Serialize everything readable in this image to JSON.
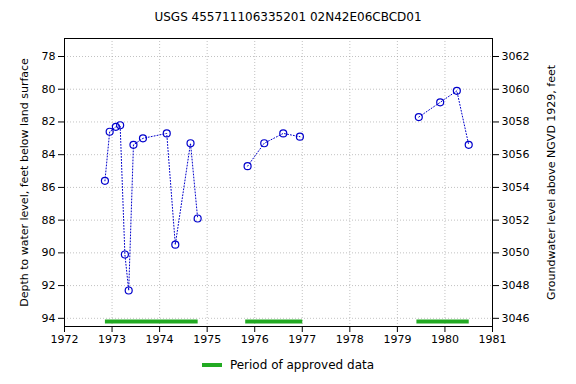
{
  "chart_data": {
    "type": "line",
    "title": "USGS 455711106335201 02N42E06CBCD01",
    "y_label": "Depth to water level, feet below land surface",
    "y2_label": "Groundwater level above NGVD 1929, feet",
    "x": [
      1972.85,
      1972.95,
      1973.08,
      1973.17,
      1973.27,
      1973.35,
      1973.45,
      1973.65,
      1974.15,
      1974.33,
      1974.65,
      1974.8,
      null,
      1975.85,
      1976.2,
      1976.6,
      1976.95,
      null,
      1979.45,
      1979.9,
      1980.25,
      1980.5
    ],
    "series": [
      {
        "color": "#0000cc",
        "marker": "circle",
        "line_style": "dotted",
        "values": [
          85.6,
          82.6,
          82.3,
          82.2,
          90.1,
          92.3,
          83.4,
          83.0,
          82.7,
          89.5,
          83.3,
          87.9,
          null,
          84.7,
          83.3,
          82.7,
          82.9,
          null,
          81.7,
          80.8,
          80.1,
          83.4
        ]
      }
    ],
    "approved_periods": {
      "name": "Period of approved data",
      "color": "#22aa22",
      "ranges": [
        [
          1972.85,
          1974.8
        ],
        [
          1975.8,
          1977.0
        ],
        [
          1979.4,
          1980.5
        ]
      ]
    },
    "xlim": [
      1972,
      1981
    ],
    "xticks": [
      1972,
      1973,
      1974,
      1975,
      1976,
      1977,
      1978,
      1979,
      1980,
      1981
    ],
    "ylim": [
      94.5,
      76.9
    ],
    "yticks": [
      78,
      80,
      82,
      84,
      86,
      88,
      90,
      92,
      94
    ],
    "y2lim": [
      3045.5,
      3063.1
    ],
    "y2ticks": [
      3046,
      3048,
      3050,
      3052,
      3054,
      3056,
      3058,
      3060,
      3062
    ],
    "grid": true,
    "legend": "bottom"
  }
}
